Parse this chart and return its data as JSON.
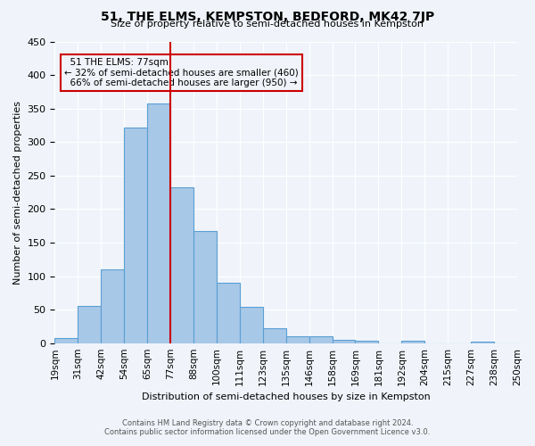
{
  "title": "51, THE ELMS, KEMPSTON, BEDFORD, MK42 7JP",
  "subtitle": "Size of property relative to semi-detached houses in Kempston",
  "xlabel": "Distribution of semi-detached houses by size in Kempston",
  "ylabel": "Number of semi-detached properties",
  "bin_labels": [
    "19sqm",
    "31sqm",
    "42sqm",
    "54sqm",
    "65sqm",
    "77sqm",
    "88sqm",
    "100sqm",
    "111sqm",
    "123sqm",
    "135sqm",
    "146sqm",
    "158sqm",
    "169sqm",
    "181sqm",
    "192sqm",
    "204sqm",
    "215sqm",
    "227sqm",
    "238sqm",
    "250sqm"
  ],
  "bar_values": [
    8,
    56,
    110,
    322,
    357,
    233,
    167,
    90,
    54,
    22,
    10,
    10,
    5,
    4,
    0,
    4,
    0,
    0,
    2,
    0
  ],
  "bar_color": "#a8c8e8",
  "bar_edge_color": "#5a9fd4",
  "property_label": "51 THE ELMS: 77sqm",
  "pct_smaller": 32,
  "pct_larger": 66,
  "count_smaller": 460,
  "count_larger": 950,
  "vline_color": "#cc0000",
  "annotation_box_edge_color": "#cc0000",
  "ylim": [
    0,
    450
  ],
  "yticks": [
    0,
    50,
    100,
    150,
    200,
    250,
    300,
    350,
    400,
    450
  ],
  "footer_line1": "Contains HM Land Registry data © Crown copyright and database right 2024.",
  "footer_line2": "Contains public sector information licensed under the Open Government Licence v3.0.",
  "bg_color": "#f0f4fa",
  "vline_index": 5
}
